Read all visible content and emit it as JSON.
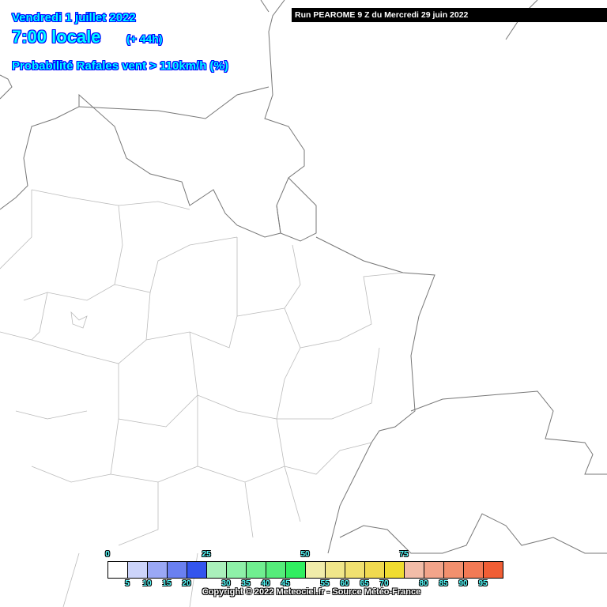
{
  "header": {
    "date": "Vendredi 1 juillet 2022",
    "hour": "7:00 locale",
    "lead": "(+ 44h)",
    "parameter": "Probabilité Rafales vent > 110km/h (%)",
    "run": "Run PEAROME 9 Z du Mercredi 29 juin 2022"
  },
  "legend": {
    "unit": "%",
    "top_labels": [
      "0",
      "25",
      "50",
      "75"
    ],
    "bottom_labels": [
      "5",
      "10",
      "15",
      "20",
      "30",
      "35",
      "40",
      "45",
      "55",
      "60",
      "65",
      "70",
      "80",
      "85",
      "90",
      "95"
    ],
    "colors": [
      "#ffffff",
      "#ccd4fa",
      "#9aa8f5",
      "#6a80f0",
      "#3355ee",
      "#aaf0bb",
      "#8ef0a8",
      "#70ee90",
      "#55ec7a",
      "#30ee60",
      "#f0ecaa",
      "#f0e68a",
      "#f0e070",
      "#f0da50",
      "#f0dc30",
      "#f2bca8",
      "#f2a48a",
      "#f2906e",
      "#f27a55",
      "#f05e35"
    ]
  },
  "footer": {
    "copyright": "Copyright © 2022 Meteociel.fr - Source Météo-France"
  }
}
